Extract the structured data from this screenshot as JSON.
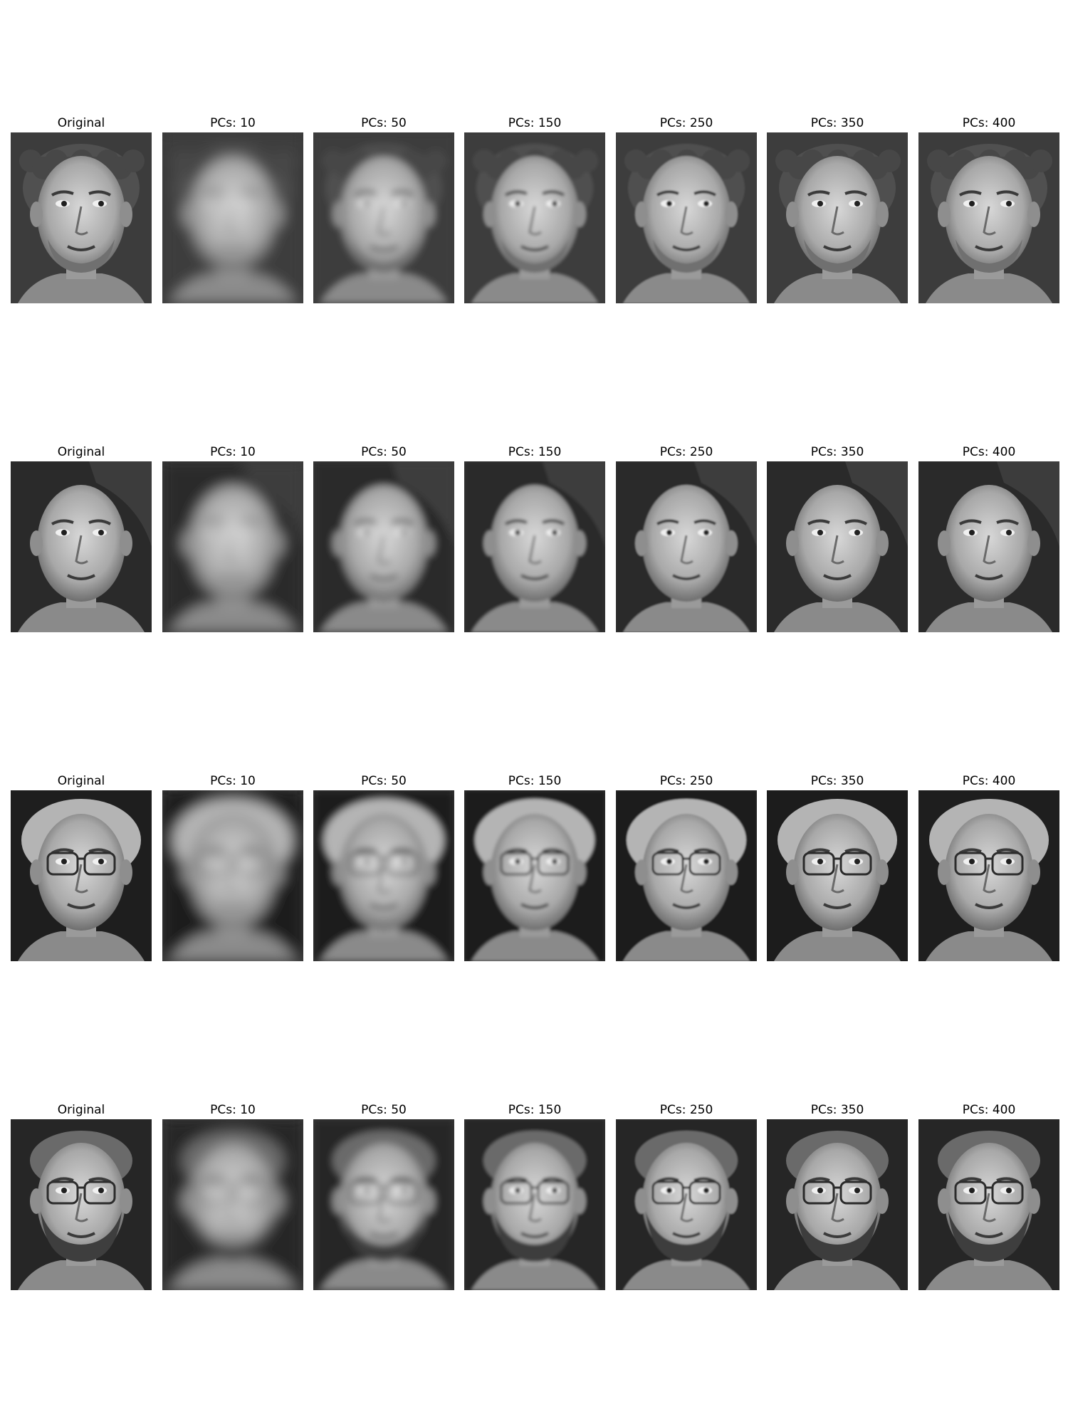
{
  "figure": {
    "rows": [
      {
        "row_label": "row-1",
        "hair": "curly",
        "glasses": false,
        "beard": "stubble",
        "background_tone": "#3c3c3c",
        "panels": [
          {
            "title": "Original",
            "blur": 0
          },
          {
            "title": "PCs: 10",
            "blur": 9
          },
          {
            "title": "PCs: 50",
            "blur": 5
          },
          {
            "title": "PCs: 150",
            "blur": 2.2
          },
          {
            "title": "PCs: 250",
            "blur": 1
          },
          {
            "title": "PCs: 350",
            "blur": 0.3
          },
          {
            "title": "PCs: 400",
            "blur": 0
          }
        ]
      },
      {
        "row_label": "row-2",
        "hair": "short-side",
        "glasses": false,
        "beard": "none",
        "background_tone": "#2a2a2a",
        "panels": [
          {
            "title": "Original",
            "blur": 0
          },
          {
            "title": "PCs: 10",
            "blur": 9
          },
          {
            "title": "PCs: 50",
            "blur": 5
          },
          {
            "title": "PCs: 150",
            "blur": 2.2
          },
          {
            "title": "PCs: 250",
            "blur": 1
          },
          {
            "title": "PCs: 350",
            "blur": 0.3
          },
          {
            "title": "PCs: 400",
            "blur": 0
          }
        ]
      },
      {
        "row_label": "row-3",
        "hair": "light",
        "glasses": true,
        "beard": "none",
        "background_tone": "#1e1e1e",
        "panels": [
          {
            "title": "Original",
            "blur": 0
          },
          {
            "title": "PCs: 10",
            "blur": 9
          },
          {
            "title": "PCs: 50",
            "blur": 5
          },
          {
            "title": "PCs: 150",
            "blur": 2.2
          },
          {
            "title": "PCs: 250",
            "blur": 1
          },
          {
            "title": "PCs: 350",
            "blur": 0.3
          },
          {
            "title": "PCs: 400",
            "blur": 0
          }
        ]
      },
      {
        "row_label": "row-4",
        "hair": "short",
        "glasses": true,
        "beard": "full",
        "background_tone": "#262626",
        "panels": [
          {
            "title": "Original",
            "blur": 0
          },
          {
            "title": "PCs: 10",
            "blur": 9
          },
          {
            "title": "PCs: 50",
            "blur": 5
          },
          {
            "title": "PCs: 150",
            "blur": 2.2
          },
          {
            "title": "PCs: 250",
            "blur": 1
          },
          {
            "title": "PCs: 350",
            "blur": 0.3
          },
          {
            "title": "PCs: 400",
            "blur": 0
          }
        ]
      }
    ]
  }
}
